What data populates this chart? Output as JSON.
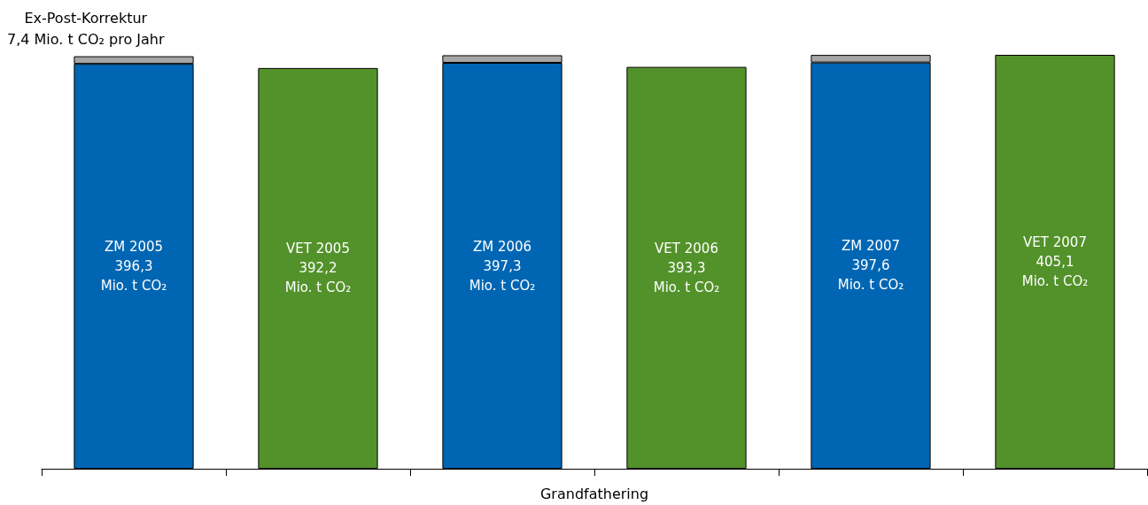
{
  "chart_data": {
    "type": "bar",
    "xlabel": "Grandfathering",
    "stacked": true,
    "tick_labels": false,
    "grid": false,
    "annotations": [
      "Ex-Post-Korrektur\n7,4 Mio. t CO₂ pro Jahr"
    ],
    "categories": [
      null,
      null,
      null,
      null,
      null,
      null
    ],
    "series": [
      {
        "color": "#0066b3",
        "values": [
          396.3,
          null,
          397.3,
          null,
          397.6,
          null
        ],
        "value_labels": [
          "ZM 2005\n396,3\nMio. t CO₂",
          null,
          "ZM 2006\n397,3\nMio. t CO₂",
          null,
          "ZM 2007\n397,6\nMio. t CO₂",
          null
        ]
      },
      {
        "color": "#a6a6a6",
        "values": [
          7.4,
          null,
          7.4,
          null,
          7.4,
          null
        ]
      },
      {
        "color": "#53922a",
        "values": [
          null,
          392.2,
          null,
          393.3,
          null,
          405.1
        ],
        "value_labels": [
          null,
          "VET 2005\n392,2\nMio. t CO₂",
          null,
          "VET 2006\n393,3\nMio. t CO₂",
          null,
          "VET 2007\n405,1\nMio. t CO₂"
        ]
      }
    ]
  }
}
